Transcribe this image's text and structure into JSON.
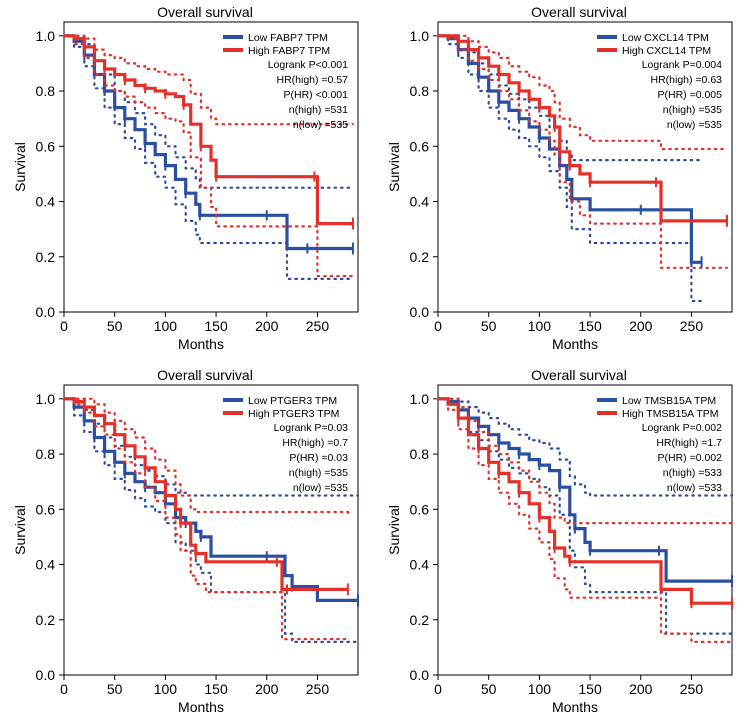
{
  "colors": {
    "low": "#2a4fa0",
    "high": "#e3312a",
    "axis": "#000000"
  },
  "chart_data": [
    {
      "type": "line",
      "title": "Overall survival",
      "xlabel": "Months",
      "ylabel": "Survival",
      "xlim": [
        0,
        290
      ],
      "ylim": [
        0,
        1.05
      ],
      "xticks": [
        0,
        50,
        100,
        150,
        200,
        250
      ],
      "xtick_labels": [
        "0",
        "50",
        "100",
        "150",
        "200",
        "250"
      ],
      "yticks": [
        0,
        0.2,
        0.4,
        0.6,
        0.8,
        1.0
      ],
      "ytick_labels": [
        "0.0",
        "0.2",
        "0.4",
        "0.6",
        "0.8",
        "1.0"
      ],
      "series": [
        {
          "name": "Low FABP7 TPM",
          "group": "low",
          "x": [
            0,
            10,
            20,
            30,
            40,
            50,
            60,
            70,
            80,
            90,
            100,
            110,
            120,
            130,
            134,
            180,
            200,
            220,
            240,
            285
          ],
          "y": [
            1.0,
            0.98,
            0.93,
            0.86,
            0.8,
            0.74,
            0.7,
            0.66,
            0.61,
            0.57,
            0.53,
            0.48,
            0.43,
            0.39,
            0.35,
            0.35,
            0.35,
            0.23,
            0.23,
            0.23
          ],
          "ci_upper": [
            1.0,
            1.0,
            0.97,
            0.91,
            0.86,
            0.8,
            0.76,
            0.72,
            0.68,
            0.64,
            0.6,
            0.56,
            0.52,
            0.48,
            0.45,
            0.45,
            0.45,
            0.45,
            0.45,
            0.45
          ],
          "ci_lower": [
            1.0,
            0.96,
            0.89,
            0.81,
            0.74,
            0.68,
            0.63,
            0.59,
            0.54,
            0.49,
            0.45,
            0.39,
            0.33,
            0.28,
            0.25,
            0.25,
            0.25,
            0.12,
            0.12,
            0.12
          ]
        },
        {
          "name": "High FABP7 TPM",
          "group": "high",
          "x": [
            0,
            10,
            20,
            30,
            40,
            50,
            60,
            70,
            80,
            90,
            100,
            110,
            118,
            125,
            135,
            145,
            150,
            200,
            247,
            250,
            285
          ],
          "y": [
            1.0,
            0.99,
            0.96,
            0.91,
            0.88,
            0.86,
            0.84,
            0.82,
            0.81,
            0.8,
            0.79,
            0.78,
            0.75,
            0.68,
            0.6,
            0.55,
            0.49,
            0.49,
            0.49,
            0.32,
            0.32
          ],
          "ci_upper": [
            1.0,
            1.0,
            0.99,
            0.95,
            0.93,
            0.92,
            0.9,
            0.89,
            0.88,
            0.87,
            0.86,
            0.86,
            0.84,
            0.79,
            0.74,
            0.7,
            0.68,
            0.68,
            0.68,
            0.68,
            0.68
          ],
          "ci_lower": [
            1.0,
            0.97,
            0.92,
            0.86,
            0.82,
            0.8,
            0.78,
            0.76,
            0.74,
            0.72,
            0.7,
            0.69,
            0.65,
            0.56,
            0.45,
            0.38,
            0.31,
            0.31,
            0.31,
            0.13,
            0.13
          ]
        }
      ],
      "legend": [
        "Low FABP7 TPM",
        "High FABP7 TPM"
      ],
      "stats": [
        "Logrank P<0.001",
        "HR(high) =0.57",
        "P(HR) <0.001",
        "n(high) =531",
        "n(low) =535"
      ]
    },
    {
      "type": "line",
      "title": "Overall survival",
      "xlabel": "Months",
      "ylabel": "Survival",
      "xlim": [
        0,
        290
      ],
      "ylim": [
        0,
        1.05
      ],
      "xticks": [
        0,
        50,
        100,
        150,
        200,
        250
      ],
      "xtick_labels": [
        "0",
        "50",
        "100",
        "150",
        "200",
        "250"
      ],
      "yticks": [
        0,
        0.2,
        0.4,
        0.6,
        0.8,
        1.0
      ],
      "ytick_labels": [
        "0.0",
        "0.2",
        "0.4",
        "0.6",
        "0.8",
        "1.0"
      ],
      "series": [
        {
          "name": "Low CXCL14 TPM",
          "group": "low",
          "x": [
            0,
            10,
            20,
            30,
            40,
            50,
            60,
            70,
            80,
            90,
            100,
            110,
            120,
            127,
            132,
            150,
            200,
            245,
            250,
            260
          ],
          "y": [
            1.0,
            0.99,
            0.95,
            0.9,
            0.85,
            0.8,
            0.76,
            0.73,
            0.7,
            0.67,
            0.63,
            0.59,
            0.53,
            0.48,
            0.41,
            0.37,
            0.37,
            0.37,
            0.18,
            0.18
          ],
          "ci_upper": [
            1.0,
            1.0,
            0.98,
            0.94,
            0.9,
            0.86,
            0.82,
            0.79,
            0.77,
            0.74,
            0.71,
            0.67,
            0.62,
            0.58,
            0.55,
            0.55,
            0.55,
            0.55,
            0.55,
            0.55
          ],
          "ci_lower": [
            1.0,
            0.97,
            0.92,
            0.86,
            0.8,
            0.74,
            0.7,
            0.66,
            0.63,
            0.6,
            0.56,
            0.51,
            0.45,
            0.38,
            0.3,
            0.25,
            0.25,
            0.25,
            0.04,
            0.04
          ]
        },
        {
          "name": "High CXCL14 TPM",
          "group": "high",
          "x": [
            0,
            10,
            20,
            30,
            40,
            50,
            60,
            70,
            80,
            90,
            100,
            110,
            115,
            120,
            130,
            140,
            150,
            200,
            215,
            220,
            285
          ],
          "y": [
            1.0,
            1.0,
            0.98,
            0.95,
            0.92,
            0.89,
            0.86,
            0.83,
            0.8,
            0.77,
            0.74,
            0.71,
            0.67,
            0.58,
            0.53,
            0.5,
            0.47,
            0.47,
            0.47,
            0.33,
            0.33
          ],
          "ci_upper": [
            1.0,
            1.0,
            1.0,
            0.98,
            0.96,
            0.94,
            0.92,
            0.89,
            0.87,
            0.85,
            0.82,
            0.8,
            0.76,
            0.7,
            0.67,
            0.64,
            0.62,
            0.62,
            0.62,
            0.59,
            0.59
          ],
          "ci_lower": [
            1.0,
            0.99,
            0.95,
            0.91,
            0.88,
            0.84,
            0.8,
            0.77,
            0.73,
            0.69,
            0.66,
            0.62,
            0.57,
            0.47,
            0.4,
            0.35,
            0.32,
            0.32,
            0.32,
            0.16,
            0.16
          ]
        }
      ],
      "legend": [
        "Low CXCL14 TPM",
        "High CXCL14 TPM"
      ],
      "stats": [
        "Logrank P=0.004",
        "HR(high) =0.63",
        "P(HR) =0.005",
        "n(high) =535",
        "n(low) =535"
      ]
    },
    {
      "type": "line",
      "title": "Overall survival",
      "xlabel": "Months",
      "ylabel": "Survival",
      "xlim": [
        0,
        290
      ],
      "ylim": [
        0,
        1.05
      ],
      "xticks": [
        0,
        50,
        100,
        150,
        200,
        250
      ],
      "xtick_labels": [
        "0",
        "50",
        "100",
        "150",
        "200",
        "250"
      ],
      "yticks": [
        0,
        0.2,
        0.4,
        0.6,
        0.8,
        1.0
      ],
      "ytick_labels": [
        "0.0",
        "0.2",
        "0.4",
        "0.6",
        "0.8",
        "1.0"
      ],
      "series": [
        {
          "name": "Low PTGER3 TPM",
          "group": "low",
          "x": [
            0,
            10,
            20,
            30,
            40,
            50,
            60,
            70,
            80,
            90,
            100,
            110,
            120,
            130,
            135,
            145,
            200,
            218,
            225,
            250,
            290
          ],
          "y": [
            1.0,
            0.97,
            0.92,
            0.86,
            0.81,
            0.77,
            0.73,
            0.7,
            0.68,
            0.66,
            0.62,
            0.57,
            0.55,
            0.52,
            0.5,
            0.43,
            0.43,
            0.36,
            0.32,
            0.27,
            0.27
          ],
          "ci_upper": [
            1.0,
            1.0,
            0.96,
            0.91,
            0.86,
            0.83,
            0.79,
            0.76,
            0.74,
            0.72,
            0.69,
            0.66,
            0.65,
            0.65,
            0.65,
            0.65,
            0.65,
            0.65,
            0.65,
            0.65,
            0.65
          ],
          "ci_lower": [
            1.0,
            0.94,
            0.88,
            0.81,
            0.76,
            0.71,
            0.67,
            0.64,
            0.61,
            0.59,
            0.55,
            0.48,
            0.45,
            0.4,
            0.37,
            0.3,
            0.3,
            0.15,
            0.12,
            0.12,
            0.12
          ]
        },
        {
          "name": "High PTGER3 TPM",
          "group": "high",
          "x": [
            0,
            10,
            20,
            30,
            40,
            50,
            60,
            70,
            80,
            90,
            100,
            110,
            115,
            125,
            130,
            140,
            210,
            215,
            220,
            280
          ],
          "y": [
            1.0,
            0.99,
            0.97,
            0.94,
            0.91,
            0.87,
            0.83,
            0.79,
            0.75,
            0.7,
            0.65,
            0.6,
            0.55,
            0.47,
            0.44,
            0.41,
            0.41,
            0.31,
            0.31,
            0.31
          ],
          "ci_upper": [
            1.0,
            1.0,
            1.0,
            0.98,
            0.95,
            0.92,
            0.89,
            0.86,
            0.82,
            0.78,
            0.74,
            0.69,
            0.65,
            0.6,
            0.59,
            0.59,
            0.59,
            0.59,
            0.59,
            0.58
          ],
          "ci_lower": [
            1.0,
            0.98,
            0.95,
            0.9,
            0.87,
            0.82,
            0.77,
            0.73,
            0.68,
            0.63,
            0.57,
            0.51,
            0.45,
            0.36,
            0.33,
            0.3,
            0.3,
            0.13,
            0.13,
            0.13
          ]
        }
      ],
      "legend": [
        "Low PTGER3 TPM",
        "High PTGER3 TPM"
      ],
      "stats": [
        "Logrank P=0.03",
        "HR(high) =0.7",
        "P(HR) =0.03",
        "n(high) =535",
        "n(low) =535"
      ]
    },
    {
      "type": "line",
      "title": "Overall survival",
      "xlabel": "Months",
      "ylabel": "Survival",
      "xlim": [
        0,
        290
      ],
      "ylim": [
        0,
        1.05
      ],
      "xticks": [
        0,
        50,
        100,
        150,
        200,
        250
      ],
      "xtick_labels": [
        "0",
        "50",
        "100",
        "150",
        "200",
        "250"
      ],
      "yticks": [
        0,
        0.2,
        0.4,
        0.6,
        0.8,
        1.0
      ],
      "ytick_labels": [
        "0.0",
        "0.2",
        "0.4",
        "0.6",
        "0.8",
        "1.0"
      ],
      "series": [
        {
          "name": "Low TMSB15A TPM",
          "group": "low",
          "x": [
            0,
            10,
            20,
            30,
            40,
            50,
            60,
            70,
            80,
            90,
            100,
            110,
            120,
            130,
            135,
            145,
            150,
            200,
            218,
            225,
            290
          ],
          "y": [
            1.0,
            0.99,
            0.96,
            0.93,
            0.9,
            0.87,
            0.84,
            0.82,
            0.8,
            0.78,
            0.76,
            0.74,
            0.68,
            0.58,
            0.53,
            0.48,
            0.45,
            0.45,
            0.45,
            0.34,
            0.34
          ],
          "ci_upper": [
            1.0,
            1.0,
            0.99,
            0.97,
            0.95,
            0.93,
            0.91,
            0.89,
            0.87,
            0.85,
            0.84,
            0.82,
            0.78,
            0.72,
            0.69,
            0.66,
            0.65,
            0.65,
            0.65,
            0.65,
            0.65
          ],
          "ci_lower": [
            1.0,
            0.98,
            0.93,
            0.88,
            0.85,
            0.81,
            0.78,
            0.75,
            0.73,
            0.71,
            0.68,
            0.65,
            0.58,
            0.45,
            0.39,
            0.33,
            0.3,
            0.3,
            0.3,
            0.15,
            0.15
          ]
        },
        {
          "name": "High TMSB15A TPM",
          "group": "high",
          "x": [
            0,
            10,
            20,
            30,
            40,
            50,
            60,
            70,
            80,
            90,
            100,
            110,
            115,
            125,
            130,
            200,
            220,
            240,
            250,
            290
          ],
          "y": [
            1.0,
            0.98,
            0.93,
            0.87,
            0.82,
            0.77,
            0.73,
            0.7,
            0.66,
            0.62,
            0.57,
            0.52,
            0.46,
            0.43,
            0.41,
            0.41,
            0.31,
            0.31,
            0.26,
            0.26
          ],
          "ci_upper": [
            1.0,
            1.0,
            0.97,
            0.92,
            0.88,
            0.83,
            0.8,
            0.77,
            0.74,
            0.7,
            0.66,
            0.62,
            0.57,
            0.55,
            0.55,
            0.55,
            0.55,
            0.55,
            0.55,
            0.55
          ],
          "ci_lower": [
            1.0,
            0.96,
            0.89,
            0.82,
            0.76,
            0.71,
            0.66,
            0.62,
            0.58,
            0.53,
            0.48,
            0.42,
            0.35,
            0.31,
            0.28,
            0.28,
            0.15,
            0.15,
            0.12,
            0.12
          ]
        }
      ],
      "legend": [
        "Low TMSB15A TPM",
        "High TMSB15A TPM"
      ],
      "stats": [
        "Logrank P=0.002",
        "HR(high) =1.7",
        "P(HR) =0.002",
        "n(high) =533",
        "n(low) =533"
      ]
    }
  ]
}
